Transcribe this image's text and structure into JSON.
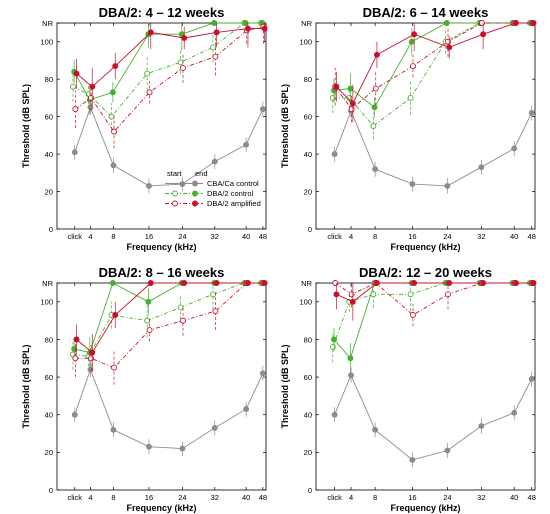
{
  "figure": {
    "x_tick_labels": [
      "click",
      "4",
      "8",
      "16",
      "24",
      "32",
      "40",
      "48"
    ],
    "y_tick_labels": [
      "0",
      "20",
      "40",
      "60",
      "80",
      "100",
      "NR"
    ],
    "colors": {
      "control_ca": "#8c8c8c",
      "dba_control": "#44b02e",
      "dba_amplified": "#c8102e"
    }
  },
  "legend": {
    "header_start": "start",
    "header_end": "end",
    "entries": [
      "CBA/Ca control",
      "DBA/2 control",
      "DBA/2 amplified"
    ]
  },
  "chart_data": [
    {
      "type": "line",
      "title": "DBA/2: 4 – 12 weeks",
      "xlabel": "Frequency (kHz)",
      "ylabel": "Threshold (dB SPL)",
      "categories": [
        "click",
        "4",
        "8",
        "16",
        "24",
        "32",
        "40",
        "48"
      ],
      "ylim": [
        0,
        110
      ],
      "no_response_level": 110,
      "series": [
        {
          "name": "CBA/Ca control",
          "values": [
            41,
            65,
            34,
            23,
            24,
            36,
            45,
            64
          ]
        },
        {
          "name": "DBA/2 control (start)",
          "values": [
            76,
            72,
            60,
            83,
            89,
            97,
            110,
            110
          ]
        },
        {
          "name": "DBA/2 control (end)",
          "values": [
            84,
            69,
            73,
            104,
            104,
            110,
            110,
            110
          ]
        },
        {
          "name": "DBA/2 amplified (start)",
          "values": [
            64,
            70,
            52,
            73,
            86,
            92,
            106,
            108
          ]
        },
        {
          "name": "DBA/2 amplified (end)",
          "values": [
            83,
            76,
            87,
            105,
            102,
            105,
            107,
            107
          ]
        }
      ]
    },
    {
      "type": "line",
      "title": "DBA/2: 6 – 14 weeks",
      "xlabel": "Frequency (kHz)",
      "ylabel": "Threshold (dB SPL)",
      "categories": [
        "click",
        "4",
        "8",
        "16",
        "24",
        "32",
        "40",
        "48"
      ],
      "ylim": [
        0,
        110
      ],
      "no_response_level": 110,
      "series": [
        {
          "name": "CBA/Ca control",
          "values": [
            40,
            63,
            32,
            24,
            23,
            33,
            43,
            62
          ]
        },
        {
          "name": "DBA/2 control (start)",
          "values": [
            70,
            70,
            55,
            70,
            100,
            110,
            110,
            110
          ]
        },
        {
          "name": "DBA/2 control (end)",
          "values": [
            74,
            75,
            65,
            100,
            110,
            110,
            110,
            110
          ]
        },
        {
          "name": "DBA/2 amplified (start)",
          "values": [
            76,
            64,
            75,
            87,
            100,
            110,
            110,
            110
          ]
        },
        {
          "name": "DBA/2 amplified (end)",
          "values": [
            76,
            67,
            93,
            104,
            97,
            104,
            110,
            110
          ]
        }
      ]
    },
    {
      "type": "line",
      "title": "DBA/2: 8 – 16 weeks",
      "xlabel": "Frequency (kHz)",
      "ylabel": "Threshold (dB SPL)",
      "categories": [
        "click",
        "4",
        "8",
        "16",
        "24",
        "32",
        "40",
        "48"
      ],
      "ylim": [
        0,
        110
      ],
      "no_response_level": 110,
      "series": [
        {
          "name": "CBA/Ca control",
          "values": [
            40,
            64,
            32,
            23,
            22,
            33,
            43,
            62
          ]
        },
        {
          "name": "DBA/2 control (start)",
          "values": [
            72,
            71,
            93,
            90,
            97,
            104,
            110,
            110
          ]
        },
        {
          "name": "DBA/2 control (end)",
          "values": [
            75,
            73,
            110,
            100,
            110,
            110,
            110,
            110
          ]
        },
        {
          "name": "DBA/2 amplified (start)",
          "values": [
            70,
            70,
            65,
            85,
            90,
            95,
            110,
            110
          ]
        },
        {
          "name": "DBA/2 amplified (end)",
          "values": [
            80,
            73,
            93,
            110,
            110,
            110,
            110,
            110
          ]
        }
      ]
    },
    {
      "type": "line",
      "title": "DBA/2: 12 – 20 weeks",
      "xlabel": "Frequency (kHz)",
      "ylabel": "Threshold (dB SPL)",
      "categories": [
        "click",
        "4",
        "8",
        "16",
        "24",
        "32",
        "40",
        "48"
      ],
      "ylim": [
        0,
        110
      ],
      "no_response_level": 110,
      "series": [
        {
          "name": "CBA/Ca control",
          "values": [
            40,
            61,
            32,
            16,
            21,
            34,
            41,
            59
          ]
        },
        {
          "name": "DBA/2 control (start)",
          "values": [
            76,
            100,
            104,
            104,
            110,
            110,
            110,
            110
          ]
        },
        {
          "name": "DBA/2 control (end)",
          "values": [
            80,
            70,
            110,
            110,
            110,
            110,
            110,
            110
          ]
        },
        {
          "name": "DBA/2 amplified (start)",
          "values": [
            110,
            104,
            110,
            93,
            104,
            110,
            110,
            110
          ]
        },
        {
          "name": "DBA/2 amplified (end)",
          "values": [
            104,
            100,
            110,
            110,
            110,
            110,
            110,
            110
          ]
        }
      ]
    }
  ]
}
